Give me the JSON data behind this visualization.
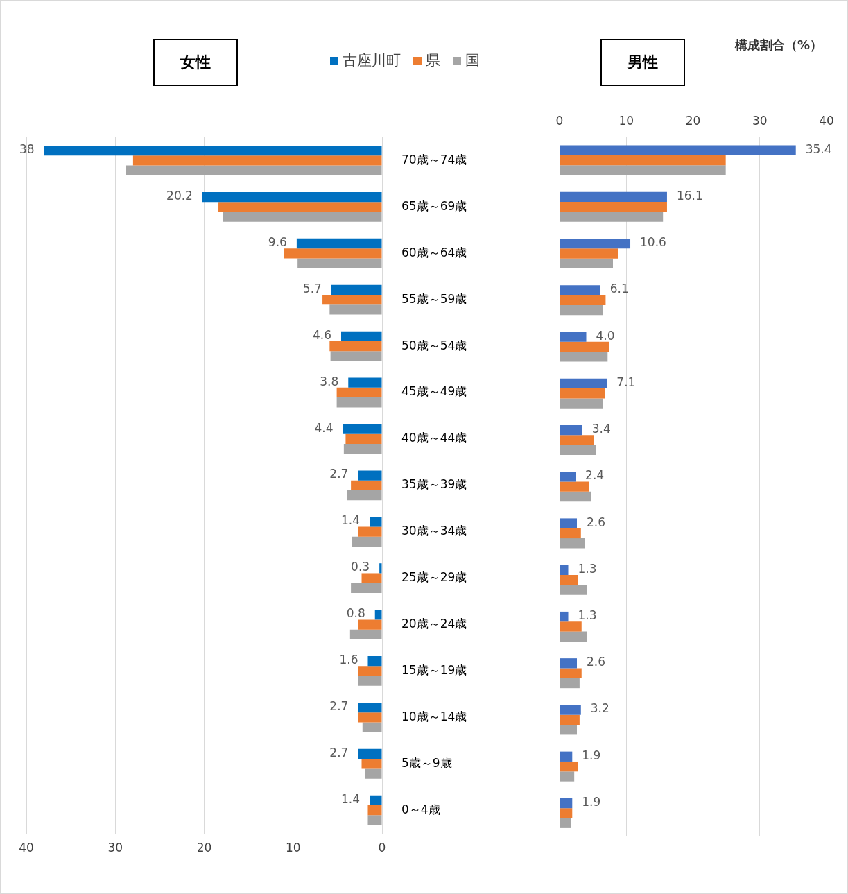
{
  "chart_data": [
    {
      "type": "bar",
      "orientation": "horizontal",
      "title": "女性",
      "categories": [
        "70歳～74歳",
        "65歳～69歳",
        "60歳～64歳",
        "55歳～59歳",
        "50歳～54歳",
        "45歳～49歳",
        "40歳～44歳",
        "35歳～39歳",
        "30歳～34歳",
        "25歳～29歳",
        "20歳～24歳",
        "15歳～19歳",
        "10歳～14歳",
        "5歳～9歳",
        "0～4歳"
      ],
      "series": [
        {
          "name": "古座川町",
          "color": "#0070c0",
          "values": [
            38,
            20.2,
            9.6,
            5.7,
            4.6,
            3.8,
            4.4,
            2.7,
            1.4,
            0.3,
            0.8,
            1.6,
            2.7,
            2.7,
            1.4
          ],
          "value_labels": [
            "38",
            "20.2",
            "9.6",
            "5.7",
            "4.6",
            "3.8",
            "4.4",
            "2.7",
            "1.4",
            "0.3",
            "0.8",
            "1.6",
            "2.7",
            "2.7",
            "1.4"
          ]
        },
        {
          "name": "県",
          "color": "#ed7d31",
          "values": [
            28.0,
            18.4,
            11.0,
            6.7,
            5.9,
            5.1,
            4.1,
            3.5,
            2.7,
            2.3,
            2.7,
            2.7,
            2.7,
            2.3,
            1.6
          ]
        },
        {
          "name": "国",
          "color": "#a5a5a5",
          "values": [
            28.8,
            17.9,
            9.5,
            5.9,
            5.8,
            5.1,
            4.3,
            3.9,
            3.4,
            3.5,
            3.6,
            2.7,
            2.2,
            1.9,
            1.6
          ]
        }
      ],
      "xlim": [
        40,
        0
      ],
      "xticks": [
        40,
        30,
        20,
        10,
        0
      ],
      "grid": "x",
      "legend": "top"
    },
    {
      "type": "bar",
      "orientation": "horizontal",
      "title": "男性",
      "xlabel": "構成割合（%）",
      "categories": [
        null,
        null,
        null,
        null,
        null,
        null,
        null,
        null,
        null,
        null,
        null,
        null,
        null,
        null,
        null
      ],
      "series": [
        {
          "color": "#4472c4",
          "values": [
            35.4,
            16.1,
            10.6,
            6.1,
            4.0,
            7.1,
            3.4,
            2.4,
            2.6,
            1.3,
            1.3,
            2.6,
            3.2,
            1.9,
            1.9
          ],
          "value_labels": [
            "35.4",
            "16.1",
            "10.6",
            "6.1",
            "4.0",
            "7.1",
            "3.4",
            "2.4",
            "2.6",
            "1.3",
            "1.3",
            "2.6",
            "3.2",
            "1.9",
            "1.9"
          ]
        },
        {
          "color": "#ed7d31",
          "values": [
            24.9,
            16.1,
            8.8,
            6.9,
            7.4,
            6.8,
            5.1,
            4.4,
            3.2,
            2.7,
            3.3,
            3.3,
            3.0,
            2.7,
            1.9
          ]
        },
        {
          "color": "#a5a5a5",
          "values": [
            24.9,
            15.5,
            8.0,
            6.5,
            7.2,
            6.5,
            5.5,
            4.7,
            3.8,
            4.1,
            4.1,
            3.0,
            2.6,
            2.2,
            1.7
          ]
        }
      ],
      "xlim": [
        0,
        40
      ],
      "xticks": [
        0,
        10,
        20,
        30,
        40
      ],
      "grid": "x",
      "tick_labels": "x"
    }
  ]
}
